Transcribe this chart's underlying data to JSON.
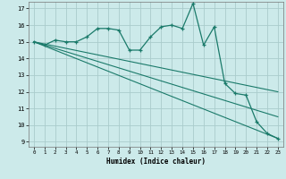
{
  "xlabel": "Humidex (Indice chaleur)",
  "background_color": "#cceaea",
  "grid_color": "#aacccc",
  "line_color": "#1a7a6a",
  "xlim": [
    -0.5,
    23.5
  ],
  "ylim": [
    8.7,
    17.4
  ],
  "yticks": [
    9,
    10,
    11,
    12,
    13,
    14,
    15,
    16,
    17
  ],
  "xticks": [
    0,
    1,
    2,
    3,
    4,
    5,
    6,
    7,
    8,
    9,
    10,
    11,
    12,
    13,
    14,
    15,
    16,
    17,
    18,
    19,
    20,
    21,
    22,
    23
  ],
  "series1_x": [
    0,
    1,
    2,
    3,
    4,
    5,
    6,
    7,
    8,
    9,
    10,
    11,
    12,
    13,
    14,
    15,
    16,
    17,
    18,
    19,
    20,
    21,
    22,
    23
  ],
  "series1_y": [
    15.0,
    14.8,
    15.1,
    15.0,
    15.0,
    15.3,
    15.8,
    15.8,
    15.7,
    14.5,
    14.5,
    15.3,
    15.9,
    16.0,
    15.8,
    17.3,
    14.8,
    15.9,
    12.5,
    11.9,
    11.8,
    10.2,
    9.5,
    9.2
  ],
  "series2_x": [
    0,
    23
  ],
  "series2_y": [
    15.0,
    12.0
  ],
  "series3_x": [
    0,
    23
  ],
  "series3_y": [
    15.0,
    10.5
  ],
  "series4_x": [
    0,
    23
  ],
  "series4_y": [
    15.0,
    9.2
  ]
}
